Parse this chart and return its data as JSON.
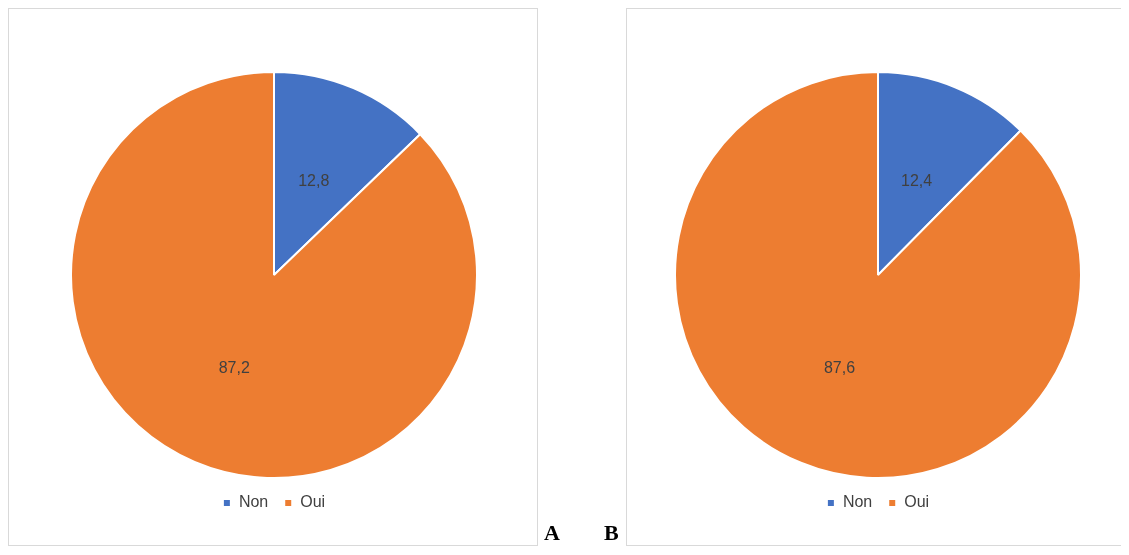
{
  "chart_data": [
    {
      "type": "pie",
      "categories": [
        "Non",
        "Oui"
      ],
      "values": [
        12.8,
        87.2
      ],
      "colors": [
        "#4472c4",
        "#ed7d31"
      ],
      "value_labels": [
        "12,8",
        "87,2"
      ],
      "legend": "bottom",
      "annotations": [
        "A"
      ]
    },
    {
      "type": "pie",
      "categories": [
        "Non",
        "Oui"
      ],
      "values": [
        12.4,
        87.6
      ],
      "colors": [
        "#4472c4",
        "#ed7d31"
      ],
      "value_labels": [
        "12,4",
        "87,6"
      ],
      "legend": "bottom",
      "annotations": [
        "B"
      ]
    }
  ]
}
